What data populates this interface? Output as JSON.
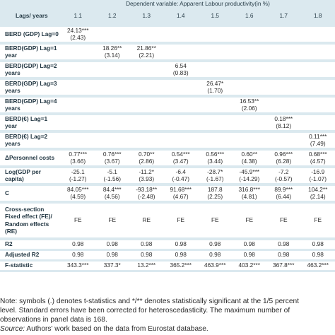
{
  "table": {
    "title": "Dependent variable: Apparent Labour productivity(in %)",
    "lags_label": "Lags/ years",
    "columns": [
      "1.1",
      "1.2",
      "1.3",
      "1.4",
      "1.5",
      "1.6",
      "1.7",
      "1.8"
    ],
    "rows": [
      {
        "label": "BERD (GDP) Lag=0",
        "coef": [
          "24.13***",
          "",
          "",
          "",
          "",
          "",
          "",
          ""
        ],
        "t": [
          "(2.43)",
          "",
          "",
          "",
          "",
          "",
          "",
          ""
        ]
      },
      {
        "label": "BERD(GDP) Lag=1 year",
        "coef": [
          "",
          "18.26**",
          "21.86**",
          "",
          "",
          "",
          "",
          ""
        ],
        "t": [
          "",
          "(3.14)",
          "(2.21)",
          "",
          "",
          "",
          "",
          ""
        ]
      },
      {
        "label": "BERD(GDP) Lag=2 years",
        "coef": [
          "",
          "",
          "",
          "6.54",
          "",
          "",
          "",
          ""
        ],
        "t": [
          "",
          "",
          "",
          "(0.83)",
          "",
          "",
          "",
          ""
        ]
      },
      {
        "label": "BERD(GDP) Lag=3 years",
        "coef": [
          "",
          "",
          "",
          "",
          "26.47*",
          "",
          "",
          ""
        ],
        "t": [
          "",
          "",
          "",
          "",
          "(1.70)",
          "",
          "",
          ""
        ]
      },
      {
        "label": "BERD(GDP) Lag=4 years",
        "coef": [
          "",
          "",
          "",
          "",
          "",
          "16.53**",
          "",
          ""
        ],
        "t": [
          "",
          "",
          "",
          "",
          "",
          "(2.06)",
          "",
          ""
        ]
      },
      {
        "label": "BERD(€) Lag=1 year",
        "coef": [
          "",
          "",
          "",
          "",
          "",
          "",
          "0.18***",
          ""
        ],
        "t": [
          "",
          "",
          "",
          "",
          "",
          "",
          "(8.12)",
          ""
        ]
      },
      {
        "label": "BERD(€) Lag=2 years",
        "coef": [
          "",
          "",
          "",
          "",
          "",
          "",
          "",
          "0.11***"
        ],
        "t": [
          "",
          "",
          "",
          "",
          "",
          "",
          "",
          "(7.49)"
        ]
      },
      {
        "label": "ΔPersonnel costs",
        "coef": [
          "0.77***",
          "0.76***",
          "0.70**",
          "0.54***",
          "0.56***",
          "0.60**",
          "0.96***",
          "0.68***"
        ],
        "t": [
          "(3.66)",
          "(3.67)",
          "(2.86)",
          "(3.47)",
          "(3.44)",
          "(4.38)",
          "(6.28)",
          "(4.57)"
        ]
      },
      {
        "label": "Log(GDP per capita)",
        "coef": [
          "-25.1",
          "-5.1",
          "-11.2*",
          "-6.4",
          "-28.7*",
          "-45.9***",
          "-7.2",
          "-16.9"
        ],
        "t": [
          "(-1.27)",
          "(-1.56)",
          "(3.93)",
          "(-0.47)",
          "(-1.67)",
          "(-14.29)",
          "(-0.57)",
          "(-1.07)"
        ]
      },
      {
        "label": "C",
        "coef": [
          "84.05***",
          "84.4***",
          "-93.18**",
          "91.68***",
          "187.8",
          "316.8***",
          "89.9***",
          "104.2**"
        ],
        "t": [
          "(4.59)",
          "(4.56)",
          "(-2.48)",
          "(4.67)",
          "(2.25)",
          "(4.81)",
          "(6.44)",
          "(2.14)"
        ]
      }
    ],
    "fe_label": "Cross-section Fixed effect (FE)/ Random effects (RE)",
    "fe_values": [
      "FE",
      "FE",
      "RE",
      "FE",
      "FE",
      "FE",
      "FE",
      "FE"
    ],
    "stats": [
      {
        "label": "R2",
        "values": [
          "0.98",
          "0.98",
          "0.98",
          "0.98",
          "0.98",
          "0.98",
          "0.98",
          "0.98"
        ]
      },
      {
        "label": "Adjusted R2",
        "values": [
          "0.98",
          "0.98",
          "0.98",
          "0.98",
          "0.98",
          "0.98",
          "0.98",
          "0.98"
        ]
      },
      {
        "label": "F-statistic",
        "values": [
          "343.3***",
          "337.3*",
          "13.2***",
          "365.2***",
          "463.9***",
          "403.2***",
          "367.8***",
          "463.2***"
        ]
      }
    ]
  },
  "note": {
    "line1": "Note: symbols (.) denotes t-statistics and */** denotes statistically significant at the 1/5 percent",
    "line2": "level. Standard errors have been corrected for heteroscedasticity. The maximum number of",
    "line3": "observations in panel data is 168.",
    "source_label": "Source:",
    "source_text": " Authors' work based on the data from Eurostat database."
  },
  "colors": {
    "header_band": "#dbe9ef",
    "label_text": "#1f3440",
    "body_text": "#2a2a2a"
  }
}
